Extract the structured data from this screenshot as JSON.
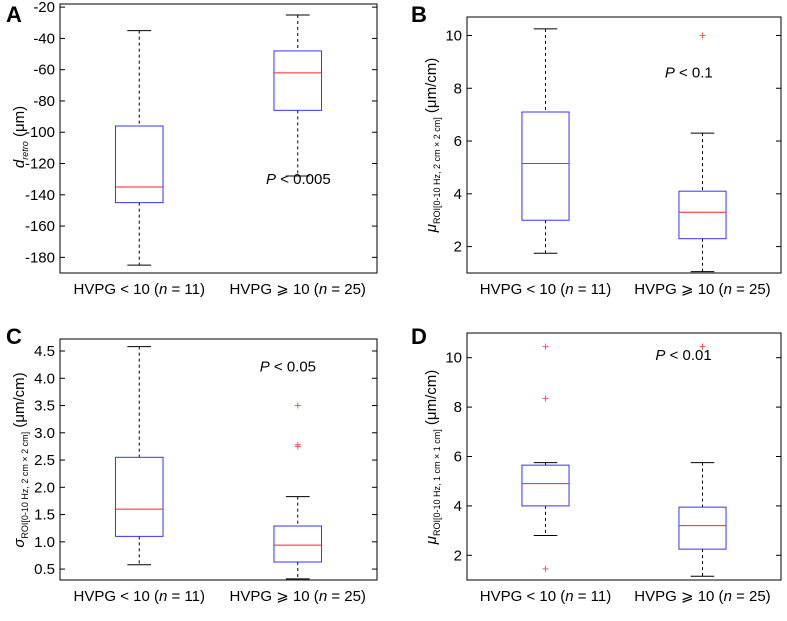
{
  "chart_data": [
    {
      "type": "box",
      "panel_label": "A",
      "ylabel_main": "d",
      "ylabel_sub": "retro",
      "ylabel_unit": " (μm)",
      "ylim": [
        -190,
        -18
      ],
      "yticks": [
        -20,
        -40,
        -60,
        -80,
        -100,
        -120,
        -140,
        -160,
        -180
      ],
      "ytick_labels": [
        "-20",
        "-40",
        "-60",
        "-80",
        "-100",
        "-120",
        "-140",
        "-160",
        "-180"
      ],
      "p_text": "P",
      "p_rest": " < 0.005",
      "p_pos": [
        -130,
        0.65
      ],
      "groups": [
        {
          "label": "HVPG < 10 (n = 11)",
          "label_pre": "HVPG < 10 (",
          "label_n": "n",
          "label_post": " = 11)",
          "min": -185,
          "q1": -145,
          "median": -135,
          "q3": -96,
          "max": -35,
          "outliers": []
        },
        {
          "label": "HVPG ≥ 10 (n = 25)",
          "label_pre": "HVPG ⩾ 10 (",
          "label_n": "n",
          "label_post": " = 25)",
          "min": -128,
          "q1": -86,
          "median": -62,
          "q3": -48,
          "max": -25,
          "outliers": []
        }
      ]
    },
    {
      "type": "box",
      "panel_label": "B",
      "ylabel_main": "μ",
      "ylabel_sub": "ROI[0-10 Hz, 2 cm × 2 cm]",
      "ylabel_unit": " (μm/cm)",
      "ylim": [
        1.0,
        10.7
      ],
      "yticks": [
        2,
        4,
        6,
        8,
        10
      ],
      "ytick_labels": [
        "2",
        "4",
        "6",
        "8",
        "10"
      ],
      "p_text": "P",
      "p_rest": " < 0.1",
      "p_pos": [
        8.6,
        0.63
      ],
      "groups": [
        {
          "label": "HVPG < 10 (n = 11)",
          "label_pre": "HVPG < 10 (",
          "label_n": "n",
          "label_post": " = 11)",
          "min": 1.75,
          "q1": 3.0,
          "median": 5.15,
          "q3": 7.1,
          "max": 10.25,
          "outliers": []
        },
        {
          "label": "HVPG ≥ 10 (n = 25)",
          "label_pre": "HVPG ⩾ 10 (",
          "label_n": "n",
          "label_post": " = 25)",
          "min": 1.05,
          "q1": 2.3,
          "median": 3.3,
          "q3": 4.1,
          "max": 6.3,
          "outliers": [
            10.0
          ]
        }
      ]
    },
    {
      "type": "box",
      "panel_label": "C",
      "ylabel_main": "σ",
      "ylabel_sub": "ROI[0-10 Hz, 2 cm × 2 cm]",
      "ylabel_unit": " (μm/cm)",
      "ylim": [
        0.3,
        4.72
      ],
      "yticks": [
        0.5,
        1.0,
        1.5,
        2.0,
        2.5,
        3.0,
        3.5,
        4.0,
        4.5
      ],
      "ytick_labels": [
        "0.5",
        "1.0",
        "1.5",
        "2.0",
        "2.5",
        "3.0",
        "3.5",
        "4.0",
        "4.5"
      ],
      "p_text": "P",
      "p_rest": " < 0.05",
      "p_pos": [
        4.22,
        0.63
      ],
      "groups": [
        {
          "label": "HVPG < 10 (n = 11)",
          "label_pre": "HVPG < 10 (",
          "label_n": "n",
          "label_post": " = 11)",
          "min": 0.58,
          "q1": 1.1,
          "median": 1.6,
          "q3": 2.55,
          "max": 4.58,
          "outliers": []
        },
        {
          "label": "HVPG ≥ 10 (n = 25)",
          "label_pre": "HVPG ⩾ 10 (",
          "label_n": "n",
          "label_post": " = 25)",
          "min": 0.32,
          "q1": 0.63,
          "median": 0.94,
          "q3": 1.29,
          "max": 1.83,
          "outliers": [
            2.75,
            2.78,
            3.5
          ]
        }
      ]
    },
    {
      "type": "box",
      "panel_label": "D",
      "ylabel_main": "μ",
      "ylabel_sub": "ROI[0-10 Hz, 1 cm × 1 cm]",
      "ylabel_unit": " (μm/cm)",
      "ylim": [
        1.0,
        11.0
      ],
      "yticks": [
        2,
        4,
        6,
        8,
        10
      ],
      "ytick_labels": [
        "2",
        "4",
        "6",
        "8",
        "10"
      ],
      "p_text": "P",
      "p_rest": " < 0.01",
      "p_pos": [
        10.1,
        0.6
      ],
      "groups": [
        {
          "label": "HVPG < 10 (n = 11)",
          "label_pre": "HVPG < 10 (",
          "label_n": "n",
          "label_post": " = 11)",
          "min": 2.8,
          "q1": 4.0,
          "median": 4.9,
          "q3": 5.65,
          "max": 5.75,
          "outliers": [
            1.45,
            8.35,
            10.45
          ]
        },
        {
          "label": "HVPG ≥ 10 (n = 25)",
          "label_pre": "HVPG ⩾ 10 (",
          "label_n": "n",
          "label_post": " = 25)",
          "min": 1.15,
          "q1": 2.25,
          "median": 3.2,
          "q3": 3.95,
          "max": 5.75,
          "outliers": [
            10.45
          ]
        }
      ]
    }
  ],
  "colors": {
    "box": "#3333ff",
    "median": "#ff2222",
    "whisker": "#000000",
    "outlier": "#ff5555",
    "axis": "#000000"
  }
}
